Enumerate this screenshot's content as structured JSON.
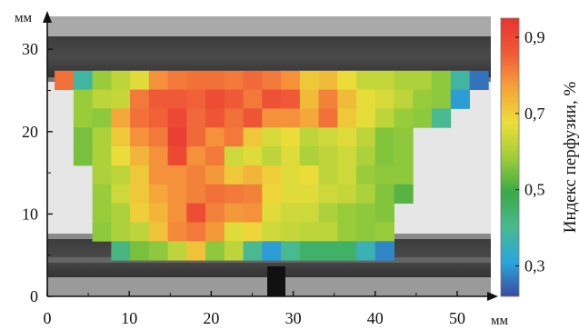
{
  "chart_data": {
    "type": "heatmap",
    "background": "grayscale photograph of specimen between two clamp bars",
    "x_unit": "мм",
    "y_unit": "мм",
    "x_ticks": [
      0,
      10,
      20,
      30,
      40,
      50
    ],
    "y_ticks": [
      0,
      10,
      20,
      30
    ],
    "xlim": [
      0,
      53.5
    ],
    "ylim": [
      0,
      34
    ],
    "cell_size_mm": [
      2.3,
      2.3
    ],
    "cell_x0_mm": 0.9,
    "cell_y_top_mm": 27.4,
    "colorbar": {
      "label": "Индекс перфузии, %",
      "ticks": [
        "0,9",
        "0,7",
        "0,5",
        "0,3"
      ],
      "tick_values": [
        0.9,
        0.7,
        0.5,
        0.3
      ],
      "range": [
        0.22,
        0.95
      ],
      "colors": [
        "#3a4aa0",
        "#2aa7dd",
        "#4ab98f",
        "#3aaa45",
        "#9fce3a",
        "#ecde3a",
        "#f5a33a",
        "#ef5a38",
        "#e83330"
      ]
    },
    "rows": [
      [
        0,
        [
          0.83,
          0.38,
          0.58,
          0.62,
          0.66,
          0.79,
          0.82,
          0.83,
          0.83,
          0.82,
          0.84,
          0.82,
          0.79,
          0.71,
          0.73,
          0.68,
          0.63,
          0.63,
          0.6,
          0.6,
          0.57,
          0.38,
          0.26
        ]
      ],
      [
        1,
        [
          0.58,
          0.62,
          0.63,
          0.82,
          0.86,
          0.86,
          0.85,
          0.89,
          0.86,
          0.82,
          0.88,
          0.86,
          0.73,
          0.81,
          0.73,
          0.67,
          0.65,
          0.62,
          0.58,
          0.57,
          0.3
        ]
      ],
      [
        1,
        [
          0.58,
          0.57,
          0.76,
          0.83,
          0.85,
          0.9,
          0.84,
          0.87,
          0.83,
          0.87,
          0.79,
          0.79,
          0.76,
          0.83,
          0.71,
          0.67,
          0.62,
          0.58,
          0.57,
          0.4
        ]
      ],
      [
        1,
        [
          0.55,
          0.6,
          0.71,
          0.79,
          0.82,
          0.92,
          0.84,
          0.79,
          0.82,
          0.71,
          0.65,
          0.68,
          0.62,
          0.64,
          0.66,
          0.62,
          0.56,
          0.57
        ]
      ],
      [
        1,
        [
          0.55,
          0.6,
          0.68,
          0.74,
          0.79,
          0.9,
          0.79,
          0.82,
          0.64,
          0.66,
          0.62,
          0.66,
          0.6,
          0.62,
          0.64,
          0.6,
          0.56,
          0.57
        ]
      ],
      [
        2,
        [
          0.6,
          0.62,
          0.71,
          0.79,
          0.79,
          0.81,
          0.78,
          0.71,
          0.74,
          0.7,
          0.66,
          0.68,
          0.62,
          0.64,
          0.58,
          0.57,
          0.57
        ]
      ],
      [
        2,
        [
          0.58,
          0.64,
          0.71,
          0.76,
          0.79,
          0.81,
          0.83,
          0.82,
          0.81,
          0.69,
          0.66,
          0.66,
          0.64,
          0.63,
          0.6,
          0.56,
          0.52
        ]
      ],
      [
        2,
        [
          0.58,
          0.6,
          0.7,
          0.74,
          0.79,
          0.89,
          0.81,
          0.78,
          0.79,
          0.66,
          0.64,
          0.64,
          0.6,
          0.58,
          0.57,
          0.56
        ]
      ],
      [
        2,
        [
          0.57,
          0.6,
          0.62,
          0.72,
          0.8,
          0.82,
          0.78,
          0.66,
          0.69,
          0.64,
          0.63,
          0.62,
          0.62,
          0.58,
          0.57,
          0.58
        ]
      ],
      [
        3,
        [
          0.42,
          0.55,
          0.57,
          0.62,
          0.72,
          0.57,
          0.62,
          0.4,
          0.3,
          0.4,
          0.45,
          0.45,
          0.45,
          0.36,
          0.28
        ]
      ]
    ]
  }
}
